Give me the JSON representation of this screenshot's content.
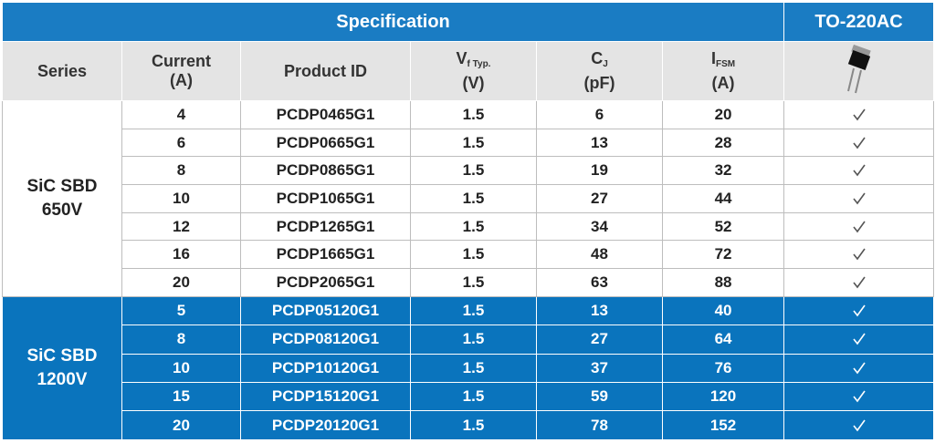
{
  "header": {
    "spec_title": "Specification",
    "package_title": "TO-220AC",
    "columns": [
      {
        "main": "Series"
      },
      {
        "main": "Current",
        "unit": "(A)"
      },
      {
        "main": "Product ID"
      },
      {
        "main": "V",
        "sub": "f Typ.",
        "unit": "(V)"
      },
      {
        "main": "C",
        "sub": "J",
        "unit": "(pF)"
      },
      {
        "main": "I",
        "sub": "FSM",
        "unit": "(A)"
      }
    ]
  },
  "groups": [
    {
      "series": [
        "SiC SBD",
        "650V"
      ],
      "rows": [
        [
          "4",
          "PCDP0465G1",
          "1.5",
          "6",
          "20"
        ],
        [
          "6",
          "PCDP0665G1",
          "1.5",
          "13",
          "28"
        ],
        [
          "8",
          "PCDP0865G1",
          "1.5",
          "19",
          "32"
        ],
        [
          "10",
          "PCDP1065G1",
          "1.5",
          "27",
          "44"
        ],
        [
          "12",
          "PCDP1265G1",
          "1.5",
          "34",
          "52"
        ],
        [
          "16",
          "PCDP1665G1",
          "1.5",
          "48",
          "72"
        ],
        [
          "20",
          "PCDP2065G1",
          "1.5",
          "63",
          "88"
        ]
      ]
    },
    {
      "series": [
        "SiC SBD",
        "1200V"
      ],
      "rows": [
        [
          "5",
          "PCDP05120G1",
          "1.5",
          "13",
          "40"
        ],
        [
          "8",
          "PCDP08120G1",
          "1.5",
          "27",
          "64"
        ],
        [
          "10",
          "PCDP10120G1",
          "1.5",
          "37",
          "76"
        ],
        [
          "15",
          "PCDP15120G1",
          "1.5",
          "59",
          "120"
        ],
        [
          "20",
          "PCDP20120G1",
          "1.5",
          "78",
          "152"
        ]
      ]
    }
  ]
}
